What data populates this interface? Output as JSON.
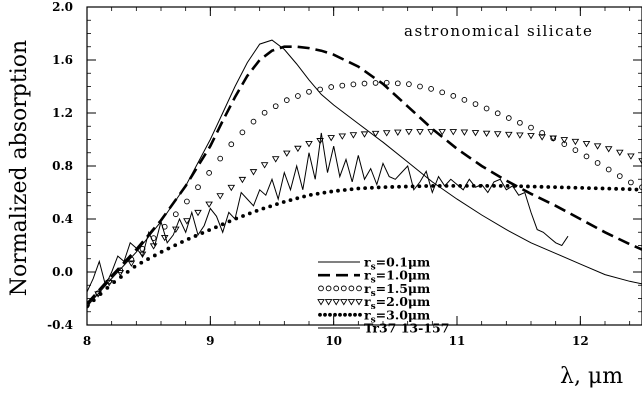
{
  "chart_data": {
    "type": "line",
    "xlabel": "λ, μm",
    "ylabel": "Normalized absorption",
    "annotation": "astronomical silicate",
    "xlim": [
      8.0,
      12.5
    ],
    "ylim": [
      -0.4,
      2.0
    ],
    "x_ticks": [
      8,
      9,
      10,
      11,
      12
    ],
    "y_ticks": [
      -0.4,
      0.0,
      0.4,
      0.8,
      1.2,
      1.6,
      2.0
    ],
    "x_tick_labels": [
      "8",
      "9",
      "10",
      "11",
      "12"
    ],
    "y_tick_labels": [
      "-0.4",
      "0.0",
      "0.4",
      "0.8",
      "1.2",
      "1.6",
      "2.0"
    ],
    "grid": false,
    "legend_position": "center-bottom",
    "series": [
      {
        "name": "rs=0.1μm",
        "style": "thin-solid",
        "x": [
          8.0,
          8.2,
          8.4,
          8.6,
          8.8,
          9.0,
          9.1,
          9.2,
          9.3,
          9.4,
          9.5,
          9.6,
          9.7,
          9.8,
          9.9,
          10.0,
          10.2,
          10.4,
          10.6,
          10.8,
          11.0,
          11.2,
          11.4,
          11.6,
          11.8,
          12.0,
          12.2,
          12.4,
          12.5
        ],
        "y": [
          -0.26,
          -0.05,
          0.15,
          0.38,
          0.65,
          1.0,
          1.2,
          1.4,
          1.58,
          1.72,
          1.75,
          1.68,
          1.57,
          1.45,
          1.34,
          1.26,
          1.12,
          0.98,
          0.83,
          0.68,
          0.55,
          0.43,
          0.32,
          0.22,
          0.14,
          0.06,
          -0.02,
          -0.07,
          -0.09
        ]
      },
      {
        "name": "rs=1.0μm",
        "style": "dashed",
        "x": [
          8.0,
          8.2,
          8.4,
          8.6,
          8.8,
          9.0,
          9.1,
          9.2,
          9.3,
          9.4,
          9.5,
          9.6,
          9.7,
          9.8,
          9.9,
          10.0,
          10.2,
          10.4,
          10.6,
          10.8,
          11.0,
          11.2,
          11.4,
          11.6,
          11.8,
          12.0,
          12.2,
          12.4,
          12.5
        ],
        "y": [
          -0.24,
          -0.03,
          0.17,
          0.39,
          0.65,
          0.95,
          1.14,
          1.32,
          1.48,
          1.6,
          1.67,
          1.7,
          1.7,
          1.69,
          1.67,
          1.64,
          1.55,
          1.42,
          1.25,
          1.08,
          0.93,
          0.8,
          0.69,
          0.59,
          0.5,
          0.4,
          0.3,
          0.21,
          0.17
        ]
      },
      {
        "name": "rs=1.5μm",
        "style": "open-circles",
        "x": [
          8.0,
          8.2,
          8.4,
          8.6,
          8.8,
          9.0,
          9.2,
          9.4,
          9.6,
          9.8,
          10.0,
          10.2,
          10.4,
          10.6,
          10.8,
          11.0,
          11.2,
          11.4,
          11.6,
          11.8,
          12.0,
          12.2,
          12.4,
          12.5
        ],
        "y": [
          -0.25,
          -0.05,
          0.13,
          0.31,
          0.52,
          0.76,
          1.0,
          1.18,
          1.29,
          1.36,
          1.4,
          1.42,
          1.43,
          1.42,
          1.38,
          1.32,
          1.25,
          1.17,
          1.09,
          1.0,
          0.9,
          0.79,
          0.68,
          0.64
        ]
      },
      {
        "name": "rs=2.0μm",
        "style": "open-triangles",
        "x": [
          8.0,
          8.2,
          8.4,
          8.6,
          8.8,
          9.0,
          9.2,
          9.4,
          9.6,
          9.8,
          10.0,
          10.2,
          10.4,
          10.6,
          10.8,
          11.0,
          11.2,
          11.4,
          11.6,
          11.8,
          12.0,
          12.2,
          12.4,
          12.5
        ],
        "y": [
          -0.25,
          -0.06,
          0.1,
          0.24,
          0.38,
          0.52,
          0.66,
          0.79,
          0.89,
          0.97,
          1.02,
          1.04,
          1.05,
          1.06,
          1.06,
          1.06,
          1.05,
          1.04,
          1.03,
          1.01,
          0.98,
          0.94,
          0.88,
          0.84
        ]
      },
      {
        "name": "rs=3.0μm",
        "style": "dotted",
        "x": [
          8.0,
          8.2,
          8.4,
          8.6,
          8.8,
          9.0,
          9.2,
          9.4,
          9.6,
          9.8,
          10.0,
          10.2,
          10.4,
          10.6,
          10.8,
          11.0,
          11.2,
          11.4,
          11.6,
          11.8,
          12.0,
          12.2,
          12.4,
          12.5
        ],
        "y": [
          -0.26,
          -0.09,
          0.05,
          0.15,
          0.24,
          0.32,
          0.4,
          0.47,
          0.53,
          0.58,
          0.61,
          0.63,
          0.64,
          0.645,
          0.65,
          0.65,
          0.65,
          0.65,
          0.645,
          0.64,
          0.635,
          0.63,
          0.625,
          0.62
        ]
      },
      {
        "name": "Tr37 13-157",
        "style": "thin-solid-noisy",
        "x": [
          8.0,
          8.05,
          8.1,
          8.15,
          8.2,
          8.25,
          8.3,
          8.35,
          8.4,
          8.45,
          8.5,
          8.55,
          8.6,
          8.65,
          8.7,
          8.75,
          8.8,
          8.85,
          8.9,
          8.95,
          9.0,
          9.05,
          9.1,
          9.15,
          9.2,
          9.25,
          9.3,
          9.35,
          9.4,
          9.45,
          9.5,
          9.55,
          9.6,
          9.65,
          9.7,
          9.75,
          9.8,
          9.85,
          9.9,
          9.95,
          10.0,
          10.05,
          10.1,
          10.15,
          10.2,
          10.25,
          10.3,
          10.35,
          10.4,
          10.45,
          10.5,
          10.55,
          10.6,
          10.65,
          10.7,
          10.75,
          10.8,
          10.85,
          10.9,
          10.95,
          11.0,
          11.05,
          11.1,
          11.15,
          11.2,
          11.25,
          11.3,
          11.35,
          11.4,
          11.45,
          11.5,
          11.55,
          11.6,
          11.65,
          11.7,
          11.75,
          11.8,
          11.85,
          11.9
        ],
        "y": [
          -0.15,
          -0.05,
          0.08,
          -0.1,
          0.0,
          0.12,
          0.08,
          0.22,
          0.18,
          0.12,
          0.3,
          0.2,
          0.38,
          0.22,
          0.28,
          0.4,
          0.3,
          0.45,
          0.28,
          0.35,
          0.48,
          0.42,
          0.3,
          0.45,
          0.4,
          0.6,
          0.55,
          0.5,
          0.62,
          0.58,
          0.7,
          0.55,
          0.75,
          0.62,
          0.8,
          0.62,
          0.9,
          0.7,
          1.05,
          0.75,
          0.95,
          0.72,
          0.85,
          0.68,
          0.88,
          0.7,
          0.78,
          0.66,
          0.82,
          0.72,
          0.7,
          0.75,
          0.8,
          0.62,
          0.68,
          0.76,
          0.6,
          0.72,
          0.65,
          0.7,
          0.66,
          0.62,
          0.7,
          0.64,
          0.66,
          0.6,
          0.68,
          0.7,
          0.62,
          0.65,
          0.58,
          0.6,
          0.45,
          0.32,
          0.3,
          0.26,
          0.22,
          0.2,
          0.27
        ]
      }
    ],
    "legend": [
      {
        "label": "r",
        "sub": "s",
        "value": "=0.1μm",
        "style": "thin-solid"
      },
      {
        "label": "r",
        "sub": "s",
        "value": "=1.0μm",
        "style": "dashed"
      },
      {
        "label": "r",
        "sub": "s",
        "value": "=1.5μm",
        "style": "open-circles"
      },
      {
        "label": "r",
        "sub": "s",
        "value": "=2.0μm",
        "style": "open-triangles"
      },
      {
        "label": "r",
        "sub": "s",
        "value": "=3.0μm",
        "style": "dotted"
      },
      {
        "label": "Tr37 13-157",
        "sub": "",
        "value": "",
        "style": "thin-solid"
      }
    ]
  }
}
